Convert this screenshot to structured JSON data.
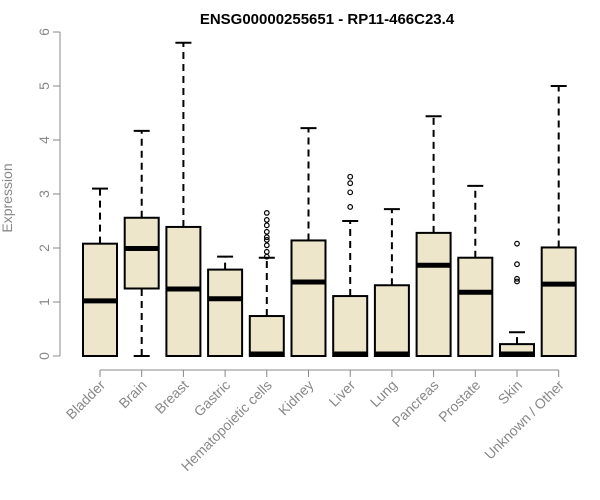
{
  "chart_data": {
    "type": "boxplot",
    "title": "ENSG00000255651 - RP11-466C23.4",
    "ylabel": "Expression",
    "xlabel": "",
    "ylim": [
      0,
      6
    ],
    "yticks": [
      0,
      1,
      2,
      3,
      4,
      5,
      6
    ],
    "grid": false,
    "legend": "none",
    "box_fill": "#ede6ca",
    "box_stroke": "#000000",
    "axis_color": "#888888",
    "categories": [
      "Bladder",
      "Brain",
      "Breast",
      "Gastric",
      "Hematopoietic cells",
      "Kidney",
      "Liver",
      "Lung",
      "Pancreas",
      "Prostate",
      "Skin",
      "Unknown / Other"
    ],
    "boxes": [
      {
        "category": "Bladder",
        "q1": 0.0,
        "median": 1.02,
        "q3": 2.08,
        "whisker_low": 0.0,
        "whisker_high": 3.1,
        "outliers": []
      },
      {
        "category": "Brain",
        "q1": 1.25,
        "median": 1.99,
        "q3": 2.56,
        "whisker_low": 0.0,
        "whisker_high": 4.17,
        "outliers": []
      },
      {
        "category": "Breast",
        "q1": 0.0,
        "median": 1.24,
        "q3": 2.39,
        "whisker_low": 0.0,
        "whisker_high": 5.8,
        "outliers": []
      },
      {
        "category": "Gastric",
        "q1": 0.0,
        "median": 1.06,
        "q3": 1.6,
        "whisker_low": 0.0,
        "whisker_high": 1.84,
        "outliers": []
      },
      {
        "category": "Hematopoietic cells",
        "q1": 0.0,
        "median": 0.02,
        "q3": 0.74,
        "whisker_low": 0.0,
        "whisker_high": 1.82,
        "outliers": [
          1.84,
          1.93,
          2.05,
          2.15,
          2.2,
          2.3,
          2.42,
          2.52,
          2.65
        ]
      },
      {
        "category": "Kidney",
        "q1": 0.0,
        "median": 1.37,
        "q3": 2.14,
        "whisker_low": 0.0,
        "whisker_high": 4.22,
        "outliers": []
      },
      {
        "category": "Liver",
        "q1": 0.0,
        "median": 0.02,
        "q3": 1.11,
        "whisker_low": 0.0,
        "whisker_high": 2.5,
        "outliers": [
          2.76,
          3.03,
          3.2,
          3.32
        ]
      },
      {
        "category": "Lung",
        "q1": 0.0,
        "median": 0.02,
        "q3": 1.31,
        "whisker_low": 0.0,
        "whisker_high": 2.72,
        "outliers": []
      },
      {
        "category": "Pancreas",
        "q1": 0.0,
        "median": 1.68,
        "q3": 2.28,
        "whisker_low": 0.0,
        "whisker_high": 4.44,
        "outliers": []
      },
      {
        "category": "Prostate",
        "q1": 0.0,
        "median": 1.18,
        "q3": 1.82,
        "whisker_low": 0.0,
        "whisker_high": 3.15,
        "outliers": []
      },
      {
        "category": "Skin",
        "q1": 0.0,
        "median": 0.02,
        "q3": 0.22,
        "whisker_low": 0.0,
        "whisker_high": 0.44,
        "outliers": [
          1.38,
          1.43,
          1.7,
          2.08
        ]
      },
      {
        "category": "Unknown / Other",
        "q1": 0.0,
        "median": 1.33,
        "q3": 2.01,
        "whisker_low": 0.0,
        "whisker_high": 5.0,
        "outliers": []
      }
    ]
  }
}
